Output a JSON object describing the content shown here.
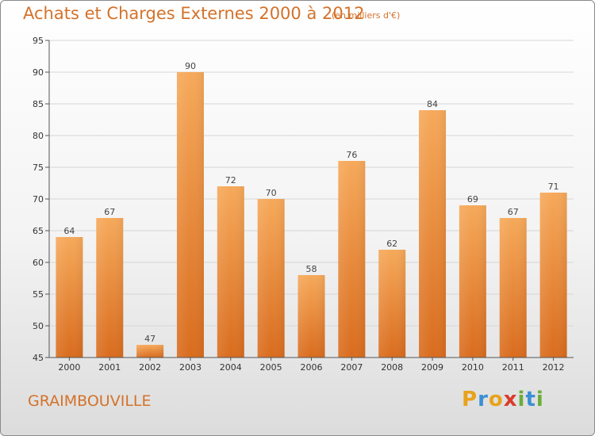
{
  "header": {
    "title": "Achats et Charges Externes 2000 à 2012",
    "unit": "(en milliers d'€)"
  },
  "footer": {
    "place": "GRAIMBOUVILLE",
    "logo": [
      "P",
      "r",
      "o",
      "x",
      "i",
      "t",
      "i"
    ],
    "logo_colors": [
      "#e8a21b",
      "#3b8fd4",
      "#e8a21b",
      "#d93c2a",
      "#6aad3a",
      "#3b8fd4",
      "#6aad3a"
    ]
  },
  "colors": {
    "bar_top": "#f6a95a",
    "bar_bottom": "#d96c1e",
    "text_accent": "#d4722a"
  },
  "chart_data": {
    "type": "bar",
    "title": "Achats et Charges Externes 2000 à 2012",
    "categories": [
      "2000",
      "2001",
      "2002",
      "2003",
      "2004",
      "2005",
      "2006",
      "2007",
      "2008",
      "2009",
      "2010",
      "2011",
      "2012"
    ],
    "values": [
      64,
      67,
      47,
      90,
      72,
      70,
      58,
      76,
      62,
      84,
      69,
      67,
      71
    ],
    "ylim": [
      45,
      95
    ],
    "yticks": [
      45,
      50,
      55,
      60,
      65,
      70,
      75,
      80,
      85,
      90,
      95
    ],
    "grid": true
  }
}
